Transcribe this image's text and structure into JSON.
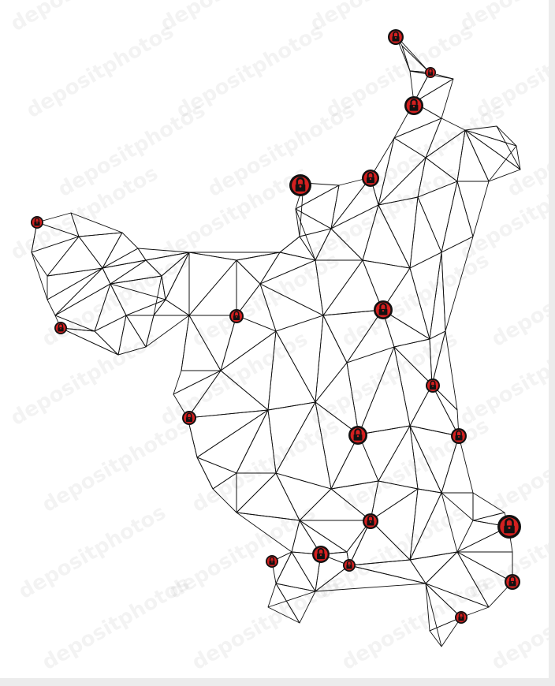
{
  "map": {
    "background": "#ffffff",
    "mesh_color": "#111111",
    "marker_fill": "#d42020",
    "marker_ring": "#111111",
    "marker_icon": "lock-icon"
  },
  "watermark": {
    "text": "depositphotos"
  }
}
